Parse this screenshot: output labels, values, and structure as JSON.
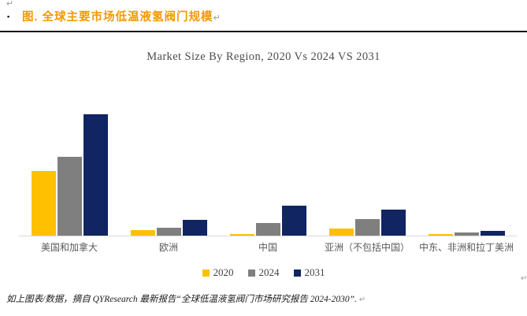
{
  "document": {
    "heading": "图.  全球主要市场低温液氢阀门规模",
    "heading_color": "#F39800",
    "bullet": "▪",
    "paragraph_mark": "↵",
    "footnote": "如上图表/数据，摘自 QYResearch 最新报告“全球低温液氢阀门市场研究报告 2024-2030”."
  },
  "chart_data": {
    "type": "bar",
    "title": "Market Size By Region, 2020 Vs 2024 VS 2031",
    "categories": [
      "美国和加拿大",
      "欧洲",
      "中国",
      "亚洲（不包括中国）",
      "中东、非洲和拉丁美洲"
    ],
    "series": [
      {
        "name": "2020",
        "color": "#FFC000",
        "values": [
          53,
          4.5,
          1.3,
          6,
          1
        ]
      },
      {
        "name": "2024",
        "color": "#7F7F7F",
        "values": [
          65,
          6.5,
          10.5,
          13.5,
          2.6
        ]
      },
      {
        "name": "2031",
        "color": "#112563",
        "values": [
          100,
          13,
          24.5,
          21.5,
          4
        ]
      }
    ],
    "xlabel": "",
    "ylabel": "",
    "value_note": "no value axis shown; values are relative index, tallest bar (美国和加拿大 2031) = 100",
    "ylim": [
      0,
      100
    ],
    "gridlines": false,
    "value_axis_visible": false,
    "legend_position": "bottom",
    "axis_line_color": "#d9d9d9",
    "text_color": "#595959"
  }
}
